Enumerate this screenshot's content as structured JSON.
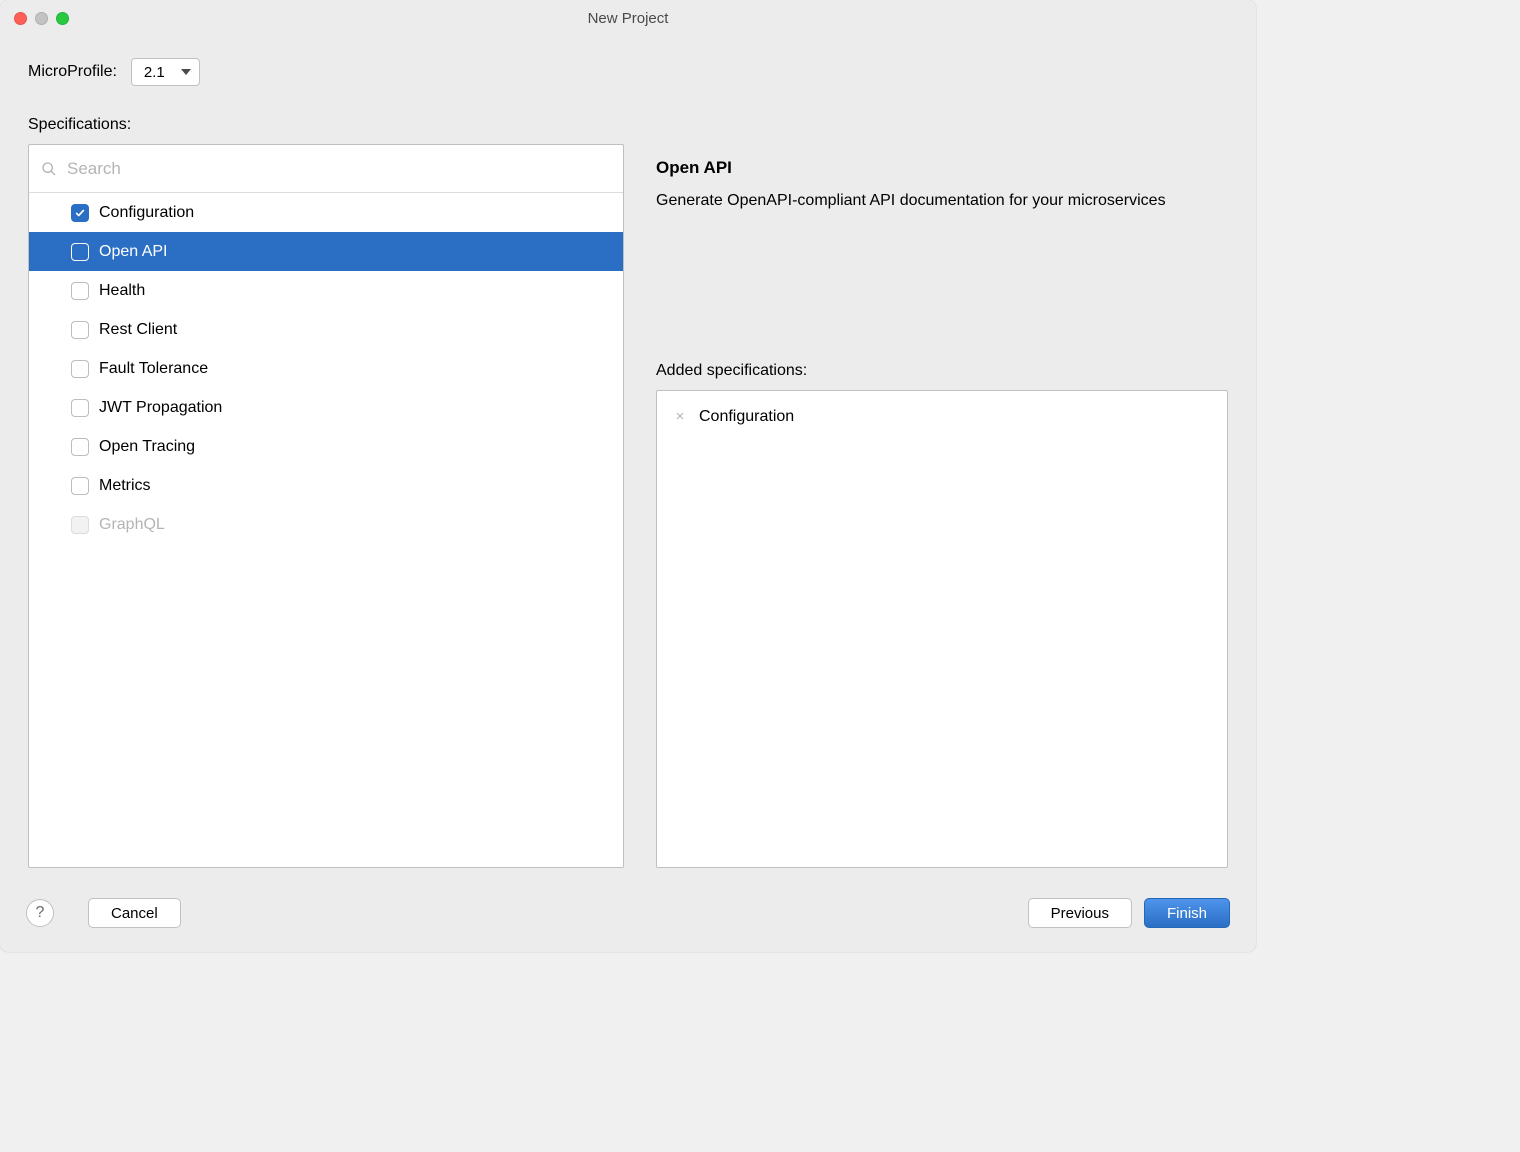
{
  "window": {
    "title": "New Project"
  },
  "microprofile": {
    "label": "MicroProfile:",
    "selected": "2.1"
  },
  "specifications": {
    "label": "Specifications:",
    "search_placeholder": "Search",
    "items": [
      {
        "label": "Configuration",
        "checked": true,
        "selected": false,
        "disabled": false
      },
      {
        "label": "Open API",
        "checked": false,
        "selected": true,
        "disabled": false
      },
      {
        "label": "Health",
        "checked": false,
        "selected": false,
        "disabled": false
      },
      {
        "label": "Rest Client",
        "checked": false,
        "selected": false,
        "disabled": false
      },
      {
        "label": "Fault Tolerance",
        "checked": false,
        "selected": false,
        "disabled": false
      },
      {
        "label": "JWT Propagation",
        "checked": false,
        "selected": false,
        "disabled": false
      },
      {
        "label": "Open Tracing",
        "checked": false,
        "selected": false,
        "disabled": false
      },
      {
        "label": "Metrics",
        "checked": false,
        "selected": false,
        "disabled": false
      },
      {
        "label": "GraphQL",
        "checked": false,
        "selected": false,
        "disabled": true
      }
    ]
  },
  "detail": {
    "title": "Open API",
    "description": "Generate OpenAPI-compliant API documentation for your microservices"
  },
  "added": {
    "label": "Added specifications:",
    "items": [
      {
        "label": "Configuration"
      }
    ]
  },
  "buttons": {
    "help": "?",
    "cancel": "Cancel",
    "previous": "Previous",
    "finish": "Finish"
  },
  "colors": {
    "window_bg": "#ececec",
    "panel_bg": "#ffffff",
    "border": "#bfbfbf",
    "selection": "#2a6fc4",
    "disabled_text": "#b4b4b4",
    "primary_btn_top": "#4f94ec",
    "primary_btn_bottom": "#2a6fc4"
  }
}
